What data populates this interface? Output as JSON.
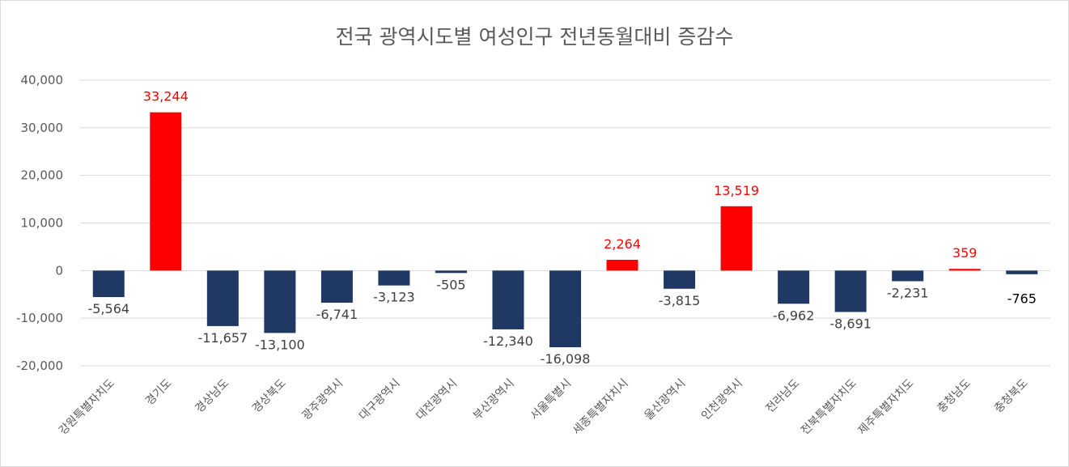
{
  "chart_data": {
    "type": "bar",
    "title": "전국 광역시도별 여성인구 전년동월대비 증감수",
    "xlabel": "",
    "ylabel": "",
    "ylim": [
      -20000,
      40000
    ],
    "yticks": [
      40000,
      30000,
      20000,
      10000,
      0,
      -10000,
      -20000
    ],
    "ytick_labels": [
      "40,000",
      "30,000",
      "20,000",
      "10,000",
      "0",
      "-10,000",
      "-20,000"
    ],
    "grid": true,
    "legend": "none",
    "categories": [
      "강원특별자치도",
      "경기도",
      "경상남도",
      "경상북도",
      "광주광역시",
      "대구광역시",
      "대전광역시",
      "부산광역시",
      "서울특별시",
      "세종특별자치시",
      "울산광역시",
      "인천광역시",
      "전라남도",
      "전북특별자치도",
      "제주특별자치도",
      "충청남도",
      "충청북도"
    ],
    "values": [
      -5564,
      33244,
      -11657,
      -13100,
      -6741,
      -3123,
      -505,
      -12340,
      -16098,
      2264,
      -3815,
      13519,
      -6962,
      -8691,
      -2231,
      359,
      -765
    ],
    "labels": [
      "-5,564",
      "33,244",
      "-11,657",
      "-13,100",
      "-6,741",
      "-3,123",
      "-505",
      "-12,340",
      "-16,098",
      "2,264",
      "-3,815",
      "13,519",
      "-6,962",
      "-8,691",
      "-2,231",
      "359",
      "-765"
    ],
    "colors": {
      "positive": "#ff0000",
      "negative": "#1f3864",
      "positive_label": "#ff0000",
      "negative_label": "#404040",
      "last_label": "#000000",
      "grid": "#d9d9d9",
      "axis_text": "#595959"
    }
  }
}
